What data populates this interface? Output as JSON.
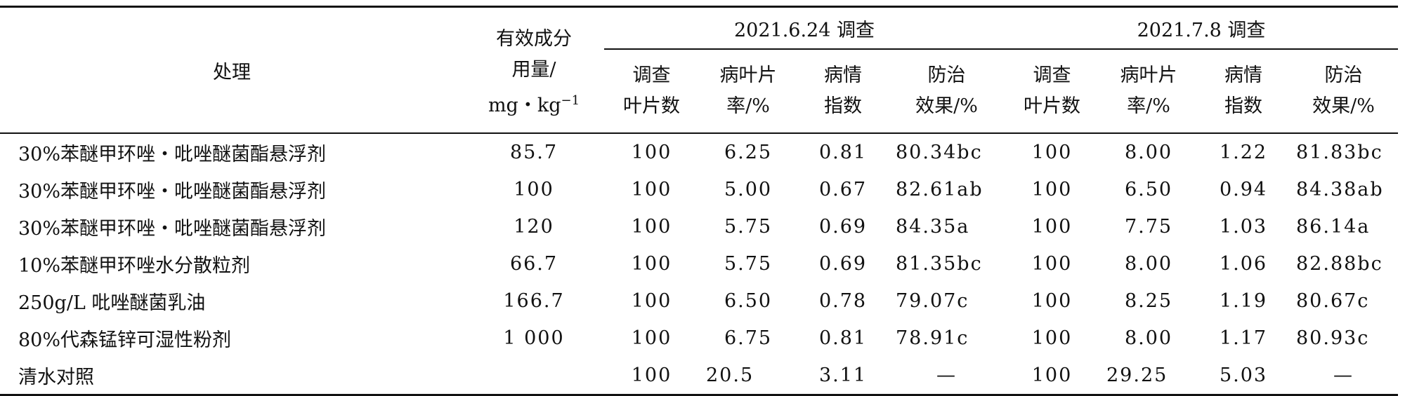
{
  "header": {
    "treatment": "处理",
    "dosage_line1": "有效成分",
    "dosage_line2": "用量/",
    "dosage_line3_base": "mg・kg",
    "dosage_line3_sup": "−1",
    "group1": "2021.6.24 调查",
    "group2": "2021.7.8 调查",
    "sub": {
      "leaves_l1": "调查",
      "leaves_l2": "叶片数",
      "rate_l1": "病叶片",
      "rate_l2": "率/%",
      "index_l1": "病情",
      "index_l2": "指数",
      "effect_l1": "防治",
      "effect_l2": "效果/%"
    }
  },
  "rows": [
    {
      "treatment": "30%苯醚甲环唑・吡唑醚菌酯悬浮剂",
      "dose": "85.7",
      "a_leaves": "100",
      "a_rate": "6.25",
      "a_index": "0.81",
      "a_effect": "80.34bc",
      "b_leaves": "100",
      "b_rate": "8.00",
      "b_index": "1.22",
      "b_effect": "81.83bc"
    },
    {
      "treatment": "30%苯醚甲环唑・吡唑醚菌酯悬浮剂",
      "dose": "100",
      "a_leaves": "100",
      "a_rate": "5.00",
      "a_index": "0.67",
      "a_effect": "82.61ab",
      "b_leaves": "100",
      "b_rate": "6.50",
      "b_index": "0.94",
      "b_effect": "84.38ab"
    },
    {
      "treatment": "30%苯醚甲环唑・吡唑醚菌酯悬浮剂",
      "dose": "120",
      "a_leaves": "100",
      "a_rate": "5.75",
      "a_index": "0.69",
      "a_effect": "84.35a",
      "b_leaves": "100",
      "b_rate": "7.75",
      "b_index": "1.03",
      "b_effect": "86.14a"
    },
    {
      "treatment": "10%苯醚甲环唑水分散粒剂",
      "dose": "66.7",
      "a_leaves": "100",
      "a_rate": "5.75",
      "a_index": "0.69",
      "a_effect": "81.35bc",
      "b_leaves": "100",
      "b_rate": "8.00",
      "b_index": "1.06",
      "b_effect": "82.88bc"
    },
    {
      "treatment": "250g/L 吡唑醚菌乳油",
      "dose": "166.7",
      "a_leaves": "100",
      "a_rate": "6.50",
      "a_index": "0.78",
      "a_effect": "79.07c",
      "b_leaves": "100",
      "b_rate": "8.25",
      "b_index": "1.19",
      "b_effect": "80.67c"
    },
    {
      "treatment": "80%代森锰锌可湿性粉剂",
      "dose": "1 000",
      "a_leaves": "100",
      "a_rate": "6.75",
      "a_index": "0.81",
      "a_effect": "78.91c",
      "b_leaves": "100",
      "b_rate": "8.00",
      "b_index": "1.17",
      "b_effect": "80.93c"
    },
    {
      "treatment": "清水对照",
      "dose": "",
      "a_leaves": "100",
      "a_rate": "20.5",
      "a_index": "3.11",
      "a_effect": "—",
      "b_leaves": "100",
      "b_rate": "29.25",
      "b_index": "5.03",
      "b_effect": "—"
    }
  ]
}
